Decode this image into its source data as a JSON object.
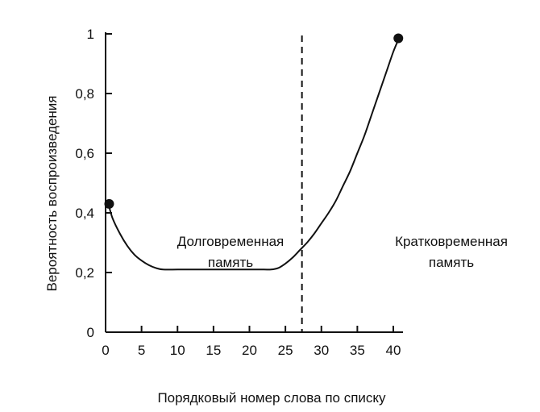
{
  "chart_data": {
    "type": "line",
    "xlabel": "Порядковый номер слова по списку",
    "ylabel": "Вероятность воспроизведения",
    "xlim": [
      0,
      40
    ],
    "ylim": [
      0,
      1
    ],
    "x_ticks": [
      0,
      5,
      10,
      15,
      20,
      25,
      30,
      35,
      40
    ],
    "y_ticks": [
      0,
      0.2,
      0.4,
      0.6,
      0.8,
      1
    ],
    "x_tick_labels": [
      "0",
      "5",
      "10",
      "15",
      "20",
      "25",
      "30",
      "35",
      "40"
    ],
    "y_tick_labels": [
      "0",
      "0,2",
      "0,4",
      "0,6",
      "0,8",
      "1"
    ],
    "grid": false,
    "series": [
      {
        "x": [
          0.5,
          1,
          2,
          3,
          4,
          5,
          6,
          7,
          8,
          10,
          12,
          15,
          18,
          20,
          22,
          23,
          24,
          25,
          26,
          27,
          28,
          29,
          30,
          31,
          32,
          33,
          34,
          35,
          36,
          37,
          38,
          39,
          40,
          40.7
        ],
        "y": [
          0.42,
          0.38,
          0.33,
          0.29,
          0.26,
          0.24,
          0.225,
          0.215,
          0.21,
          0.21,
          0.21,
          0.21,
          0.21,
          0.21,
          0.21,
          0.21,
          0.215,
          0.23,
          0.25,
          0.275,
          0.3,
          0.33,
          0.365,
          0.4,
          0.44,
          0.49,
          0.54,
          0.6,
          0.66,
          0.73,
          0.8,
          0.87,
          0.94,
          0.98
        ]
      }
    ],
    "markers": [
      {
        "x": 0.5,
        "y": 0.43
      },
      {
        "x": 40.7,
        "y": 0.985
      }
    ],
    "divider_x": 27.3,
    "annotations": [
      {
        "lines": [
          "Долговременная",
          "память"
        ]
      },
      {
        "lines": [
          "Кратковременная",
          "память"
        ]
      }
    ]
  }
}
